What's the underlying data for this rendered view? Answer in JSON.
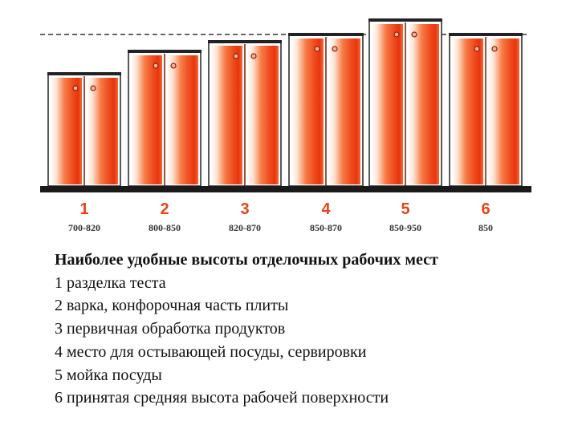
{
  "cabinets": [
    {
      "number": "1",
      "range": "700-820"
    },
    {
      "number": "2",
      "range": "800-850"
    },
    {
      "number": "3",
      "range": "820-870"
    },
    {
      "number": "4",
      "range": "850-870"
    },
    {
      "number": "5",
      "range": "850-950"
    },
    {
      "number": "6",
      "range": "850"
    }
  ],
  "colors": {
    "number": "#e8431c",
    "cabinet_center": "#e8350f",
    "cabinet_edge": "#ffffff",
    "frame": "#222222",
    "floor": "#1a1a1a"
  },
  "caption": {
    "title": "Наиболее удобные высоты отделочных рабочих мест",
    "items": [
      "1 разделка теста",
      "2 варка, конфорочная часть плиты",
      "3 первичная обработка продуктов",
      "4 место для остывающей посуды, сервировки",
      "5 мойка посуды",
      "6 принятая средняя высота рабочей поверхности"
    ]
  }
}
